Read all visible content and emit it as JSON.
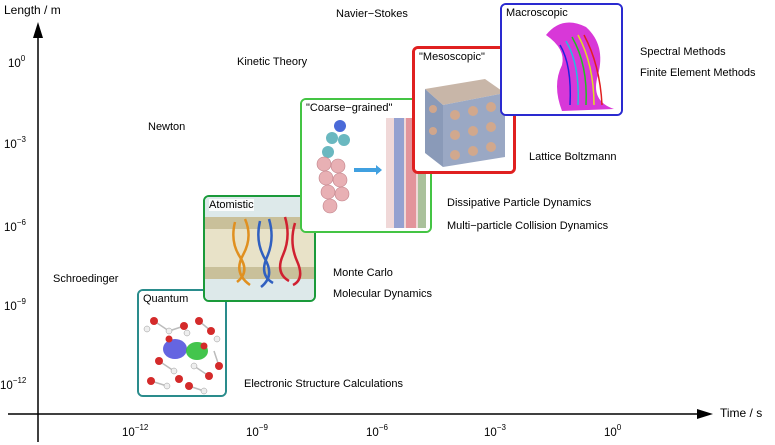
{
  "axes": {
    "y_title": "Length / m",
    "x_title": "Time / s",
    "y_ticks": [
      {
        "base": "10",
        "exp": "0"
      },
      {
        "base": "10",
        "exp": "−3"
      },
      {
        "base": "10",
        "exp": "−6"
      },
      {
        "base": "10",
        "exp": "−9"
      },
      {
        "base": "10",
        "exp": "−12"
      }
    ],
    "x_ticks": [
      {
        "base": "10",
        "exp": "−12"
      },
      {
        "base": "10",
        "exp": "−9"
      },
      {
        "base": "10",
        "exp": "−6"
      },
      {
        "base": "10",
        "exp": "−3"
      },
      {
        "base": "10",
        "exp": "0"
      }
    ]
  },
  "methods": {
    "navier_stokes": "Navier−Stokes",
    "kinetic_theory": "Kinetic Theory",
    "newton": "Newton",
    "schroedinger": "Schroedinger",
    "spectral": "Spectral Methods",
    "finite_element": "Finite Element Methods",
    "lattice_boltzmann": "Lattice Boltzmann",
    "dpd": "Dissipative Particle Dynamics",
    "mpc": "Multi−particle Collision Dynamics",
    "monte_carlo": "Monte Carlo",
    "md": "Molecular Dynamics",
    "esc": "Electronic Structure Calculations"
  },
  "scales": {
    "quantum": {
      "label": "Quantum",
      "color": "#2a8c8c"
    },
    "atomistic": {
      "label": "Atomistic",
      "color": "#1a9a3a"
    },
    "coarse": {
      "label": "\"Coarse−grained\"",
      "color": "#44c444"
    },
    "meso": {
      "label": "\"Mesoscopic\"",
      "color": "#e02020"
    },
    "macro": {
      "label": "Macroscopic",
      "color": "#2a2ad0"
    }
  }
}
